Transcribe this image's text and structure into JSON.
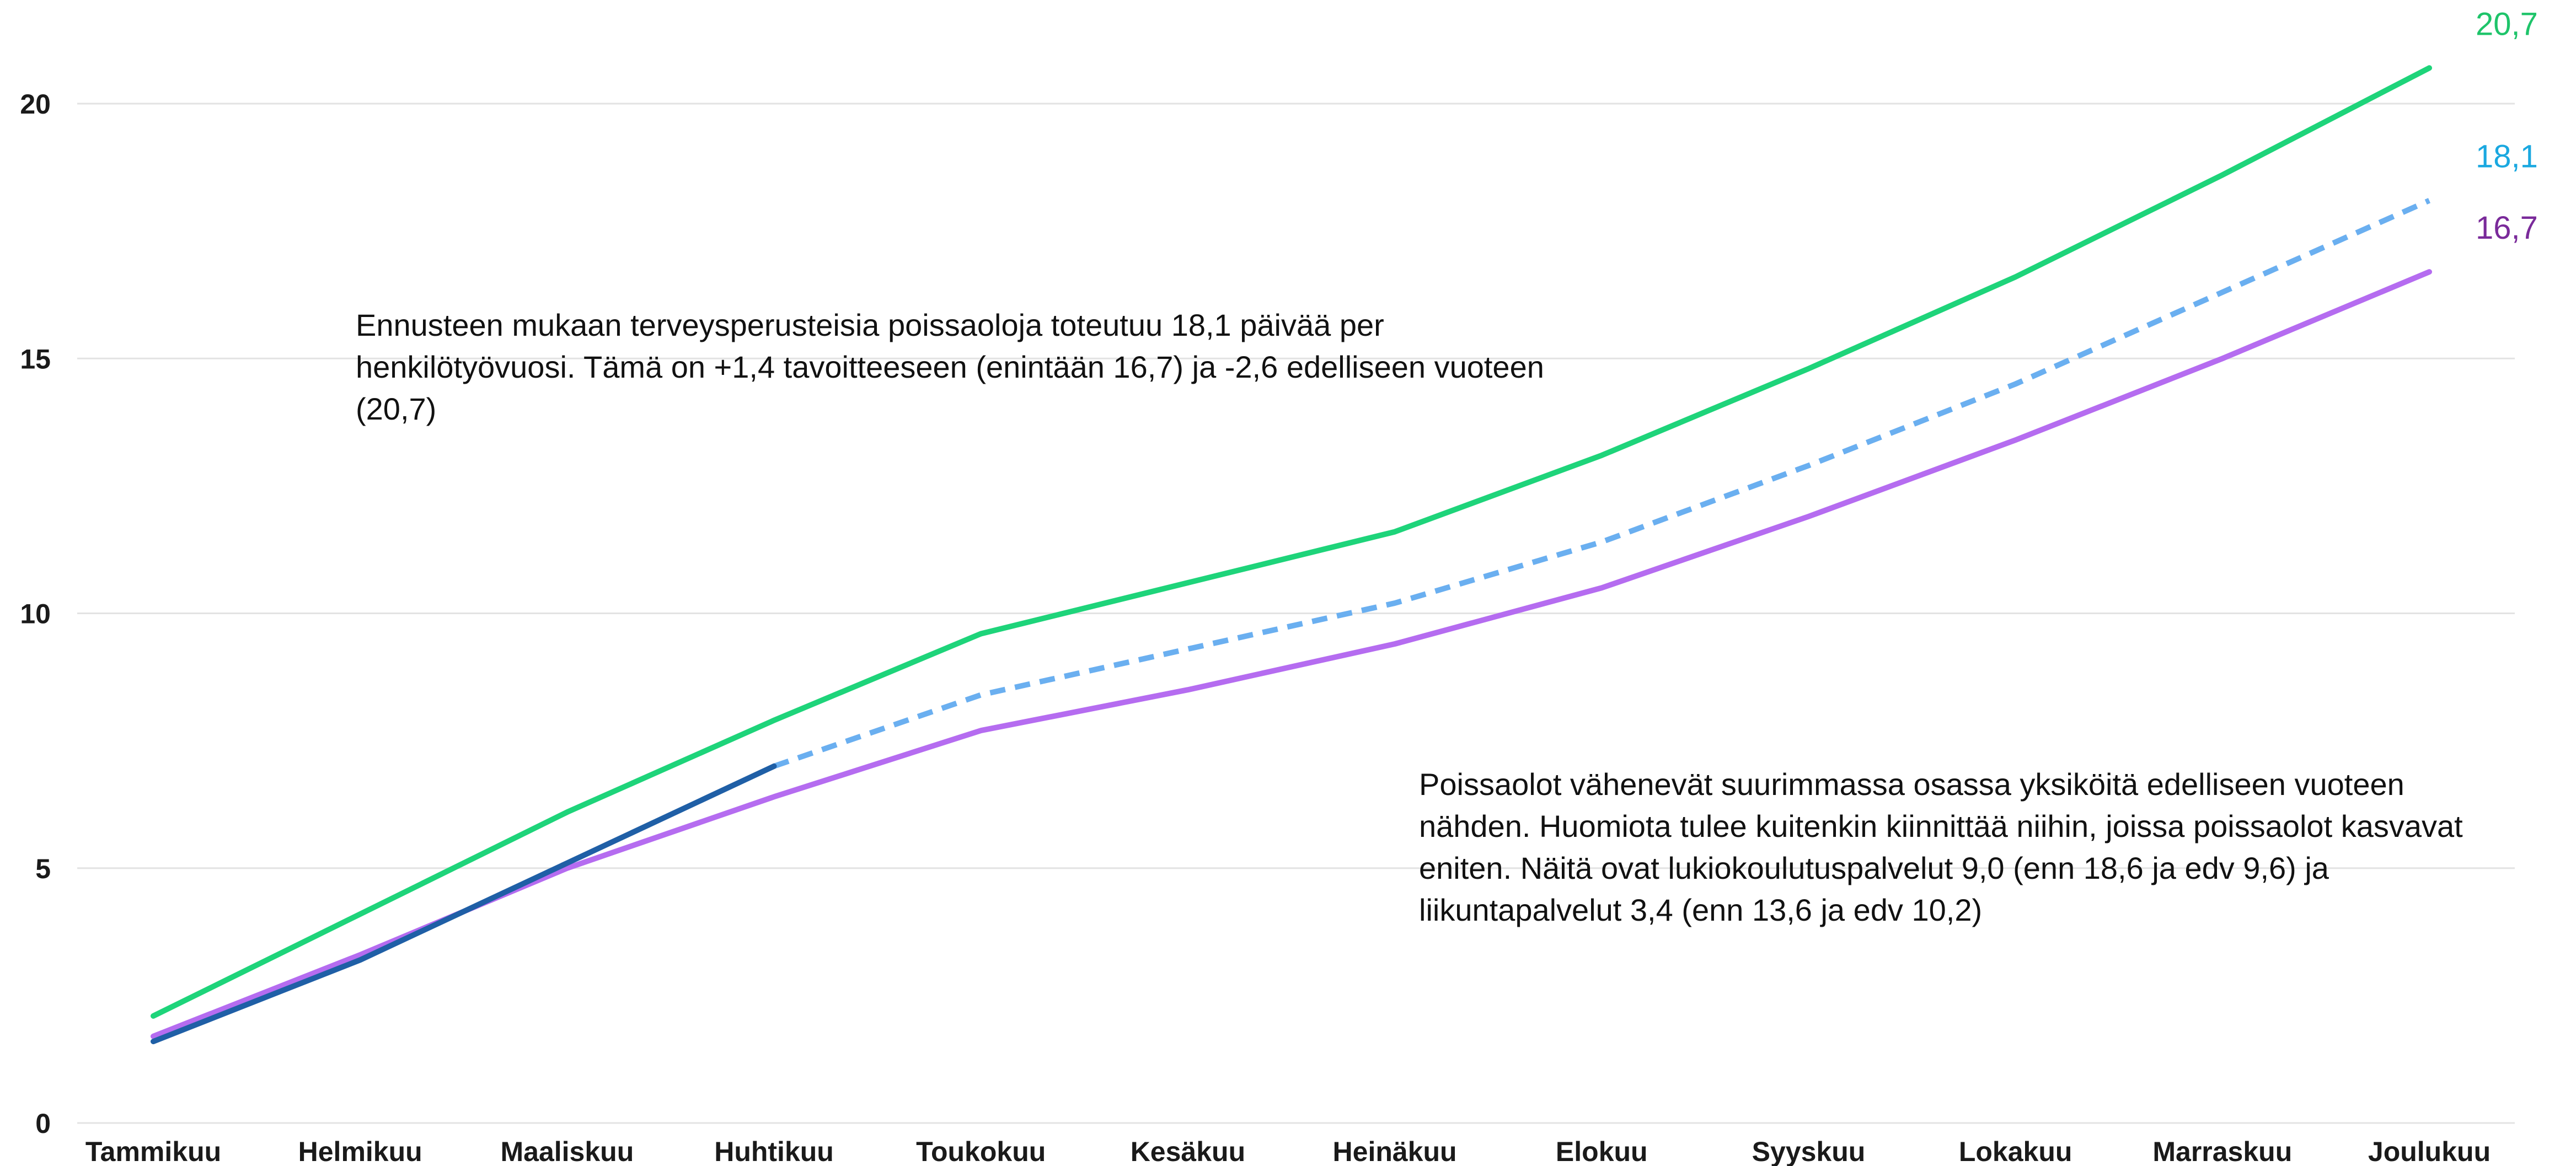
{
  "chart_data": {
    "type": "line",
    "categories": [
      "Tammikuu",
      "Helmikuu",
      "Maaliskuu",
      "Huhtikuu",
      "Toukokuu",
      "Kesäkuu",
      "Heinäkuu",
      "Elokuu",
      "Syyskuu",
      "Lokakuu",
      "Marraskuu",
      "Joulukuu"
    ],
    "ylim": [
      0,
      22
    ],
    "yticks": [
      "0",
      "5",
      "10",
      "15",
      "20"
    ],
    "grid": true,
    "series": [
      {
        "key": "previous-year",
        "color": "#1ed47a",
        "style": "solid",
        "values": [
          2.1,
          4.1,
          6.1,
          7.9,
          9.6,
          10.6,
          11.6,
          13.1,
          14.8,
          16.6,
          18.6,
          20.7
        ],
        "end_label": "20,7"
      },
      {
        "key": "forecast",
        "color": "#6aaff0",
        "style": "dashed",
        "values": [
          null,
          null,
          null,
          7.0,
          8.4,
          9.3,
          10.2,
          11.4,
          12.9,
          14.5,
          16.3,
          18.1
        ],
        "end_label": "18,1"
      },
      {
        "key": "target",
        "color": "#b56cf0",
        "style": "solid",
        "values": [
          1.7,
          3.3,
          5.0,
          6.4,
          7.7,
          8.5,
          9.4,
          10.5,
          11.9,
          13.4,
          15.0,
          16.7
        ],
        "end_label": "16,7"
      },
      {
        "key": "actual",
        "color": "#1f5fa6",
        "style": "solid",
        "values": [
          1.6,
          3.2,
          5.1,
          7.0,
          null,
          null,
          null,
          null,
          null,
          null,
          null,
          null
        ]
      }
    ],
    "end_label_colors": [
      "#1ec46a",
      "#1aa8e0",
      "#7a2a9a"
    ],
    "annotations": [
      "Ennusteen mukaan terveysperusteisia poissaoloja toteutuu 18,1 päivää per henkilötyövuosi. Tämä on +1,4 tavoitteeseen (enintään 16,7) ja -2,6 edelliseen vuoteen (20,7)",
      "Poissaolot vähenevät suurimmassa osassa yksiköitä edelliseen vuoteen nähden. Huomiota tulee kuitenkin kiinnittää niihin, joissa poissaolot kasvavat eniten. Näitä ovat lukiokoulutuspalvelut 9,0 (enn 18,6 ja edv 9,6) ja liikuntapalvelut 3,4 (enn 13,6 ja edv 10,2)"
    ]
  }
}
